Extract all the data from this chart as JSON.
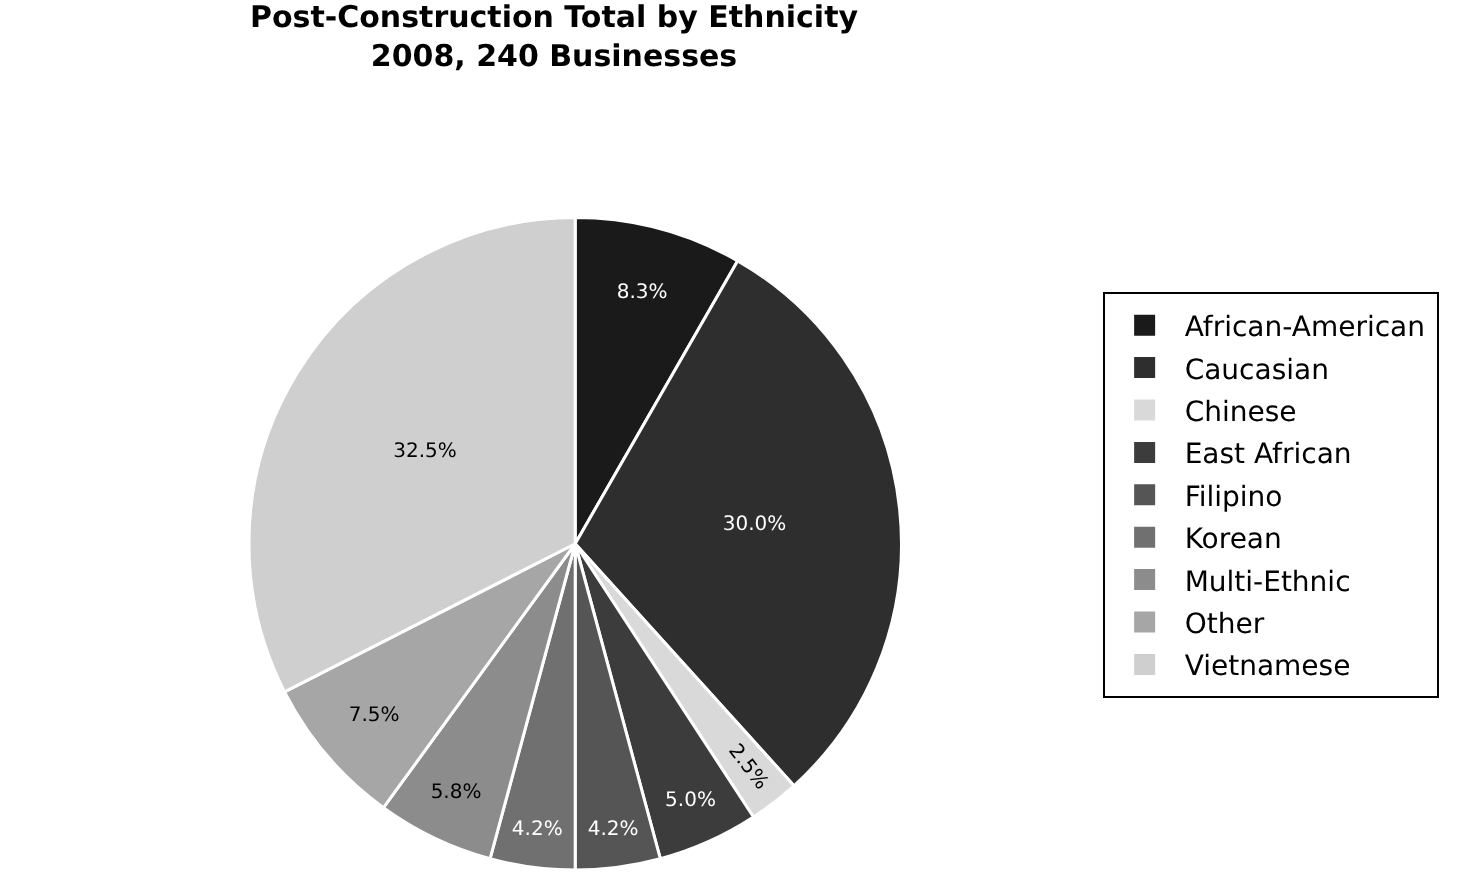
{
  "chart_data": {
    "type": "pie",
    "title": "Post-Construction Total by Ethnicity\n2008, 240 Businesses",
    "categories": [
      "African-American",
      "Caucasian",
      "Chinese",
      "East African",
      "Filipino",
      "Korean",
      "Multi-Ethnic",
      "Other",
      "Vietnamese"
    ],
    "values": [
      8.3,
      30.0,
      2.5,
      5.0,
      4.2,
      4.2,
      5.8,
      7.5,
      32.5
    ],
    "colors": [
      "#1a1a1a",
      "#2e2e2e",
      "#d9d9d9",
      "#3c3c3c",
      "#555555",
      "#707070",
      "#8c8c8c",
      "#a6a6a6",
      "#cfcfcf"
    ],
    "value_labels": [
      "8.3%",
      "30.0%",
      "2.5%",
      "5.0%",
      "4.2%",
      "4.2%",
      "5.8%",
      "7.5%",
      "32.5%"
    ],
    "legend": "right"
  }
}
